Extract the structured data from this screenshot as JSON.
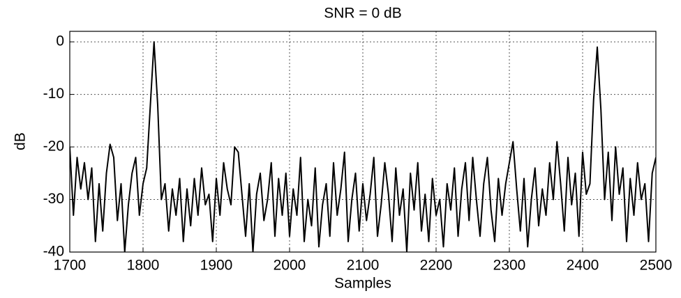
{
  "chart_data": {
    "type": "line",
    "title": "SNR = 0 dB",
    "x_label": "Samples",
    "y_label": "dB",
    "x": [
      1700,
      1705,
      1710,
      1715,
      1720,
      1725,
      1730,
      1735,
      1740,
      1745,
      1750,
      1755,
      1760,
      1765,
      1770,
      1775,
      1780,
      1785,
      1790,
      1795,
      1800,
      1805,
      1810,
      1815,
      1820,
      1825,
      1830,
      1835,
      1840,
      1845,
      1850,
      1855,
      1860,
      1865,
      1870,
      1875,
      1880,
      1885,
      1890,
      1895,
      1900,
      1905,
      1910,
      1915,
      1920,
      1925,
      1930,
      1935,
      1940,
      1945,
      1950,
      1955,
      1960,
      1965,
      1970,
      1975,
      1980,
      1985,
      1990,
      1995,
      2000,
      2005,
      2010,
      2015,
      2020,
      2025,
      2030,
      2035,
      2040,
      2045,
      2050,
      2055,
      2060,
      2065,
      2070,
      2075,
      2080,
      2085,
      2090,
      2095,
      2100,
      2105,
      2110,
      2115,
      2120,
      2125,
      2130,
      2135,
      2140,
      2145,
      2150,
      2155,
      2160,
      2165,
      2170,
      2175,
      2180,
      2185,
      2190,
      2195,
      2200,
      2205,
      2210,
      2215,
      2220,
      2225,
      2230,
      2235,
      2240,
      2245,
      2250,
      2255,
      2260,
      2265,
      2270,
      2275,
      2280,
      2285,
      2290,
      2295,
      2300,
      2305,
      2310,
      2315,
      2320,
      2325,
      2330,
      2335,
      2340,
      2345,
      2350,
      2355,
      2360,
      2365,
      2370,
      2375,
      2380,
      2385,
      2390,
      2395,
      2400,
      2405,
      2410,
      2415,
      2420,
      2425,
      2430,
      2435,
      2440,
      2445,
      2450,
      2455,
      2460,
      2465,
      2470,
      2475,
      2480,
      2485,
      2490,
      2495,
      2500
    ],
    "series": [
      {
        "color": "#000000",
        "values": [
          -20,
          -33,
          -22,
          -28,
          -23,
          -30,
          -24,
          -38,
          -27,
          -36,
          -25,
          -19.5,
          -22,
          -34,
          -27,
          -40,
          -31,
          -25,
          -22,
          -33,
          -27,
          -24,
          -12,
          0,
          -12,
          -30,
          -27,
          -36,
          -28,
          -33,
          -26,
          -38,
          -28,
          -35,
          -26,
          -33,
          -24,
          -31,
          -29,
          -38,
          -26,
          -33,
          -23,
          -28,
          -31,
          -20,
          -21,
          -29,
          -37,
          -27,
          -40,
          -29,
          -25,
          -34,
          -30,
          -23,
          -37,
          -26,
          -33,
          -25,
          -37,
          -28,
          -33,
          -22,
          -38,
          -30,
          -35,
          -24,
          -39,
          -31,
          -27,
          -37,
          -23,
          -33,
          -28,
          -21,
          -38,
          -30,
          -25,
          -36,
          -27,
          -34,
          -29,
          -22,
          -37,
          -31,
          -23,
          -29,
          -38,
          -24,
          -33,
          -28,
          -40,
          -25,
          -32,
          -23,
          -36,
          -29,
          -38,
          -26,
          -33,
          -30,
          -39,
          -27,
          -32,
          -24,
          -37,
          -28,
          -23,
          -34,
          -22,
          -30,
          -37,
          -27,
          -22,
          -32,
          -38,
          -26,
          -33,
          -27,
          -23,
          -19,
          -28,
          -36,
          -26,
          -39,
          -30,
          -24,
          -35,
          -28,
          -33,
          -23,
          -30,
          -19,
          -27,
          -36,
          -22,
          -31,
          -25,
          -37,
          -21,
          -29,
          -27,
          -11,
          -1,
          -13,
          -30,
          -21,
          -34,
          -20,
          -29,
          -24,
          -38,
          -26,
          -33,
          -23,
          -30,
          -27,
          -38,
          -25,
          -22
        ]
      }
    ],
    "xlim": [
      1700,
      2500
    ],
    "xticks": [
      1700,
      1800,
      1900,
      2000,
      2100,
      2200,
      2300,
      2400,
      2500
    ],
    "ylim": [
      -40,
      2
    ],
    "yticks": [
      0,
      -10,
      -20,
      -30,
      -40
    ],
    "grid": true
  }
}
